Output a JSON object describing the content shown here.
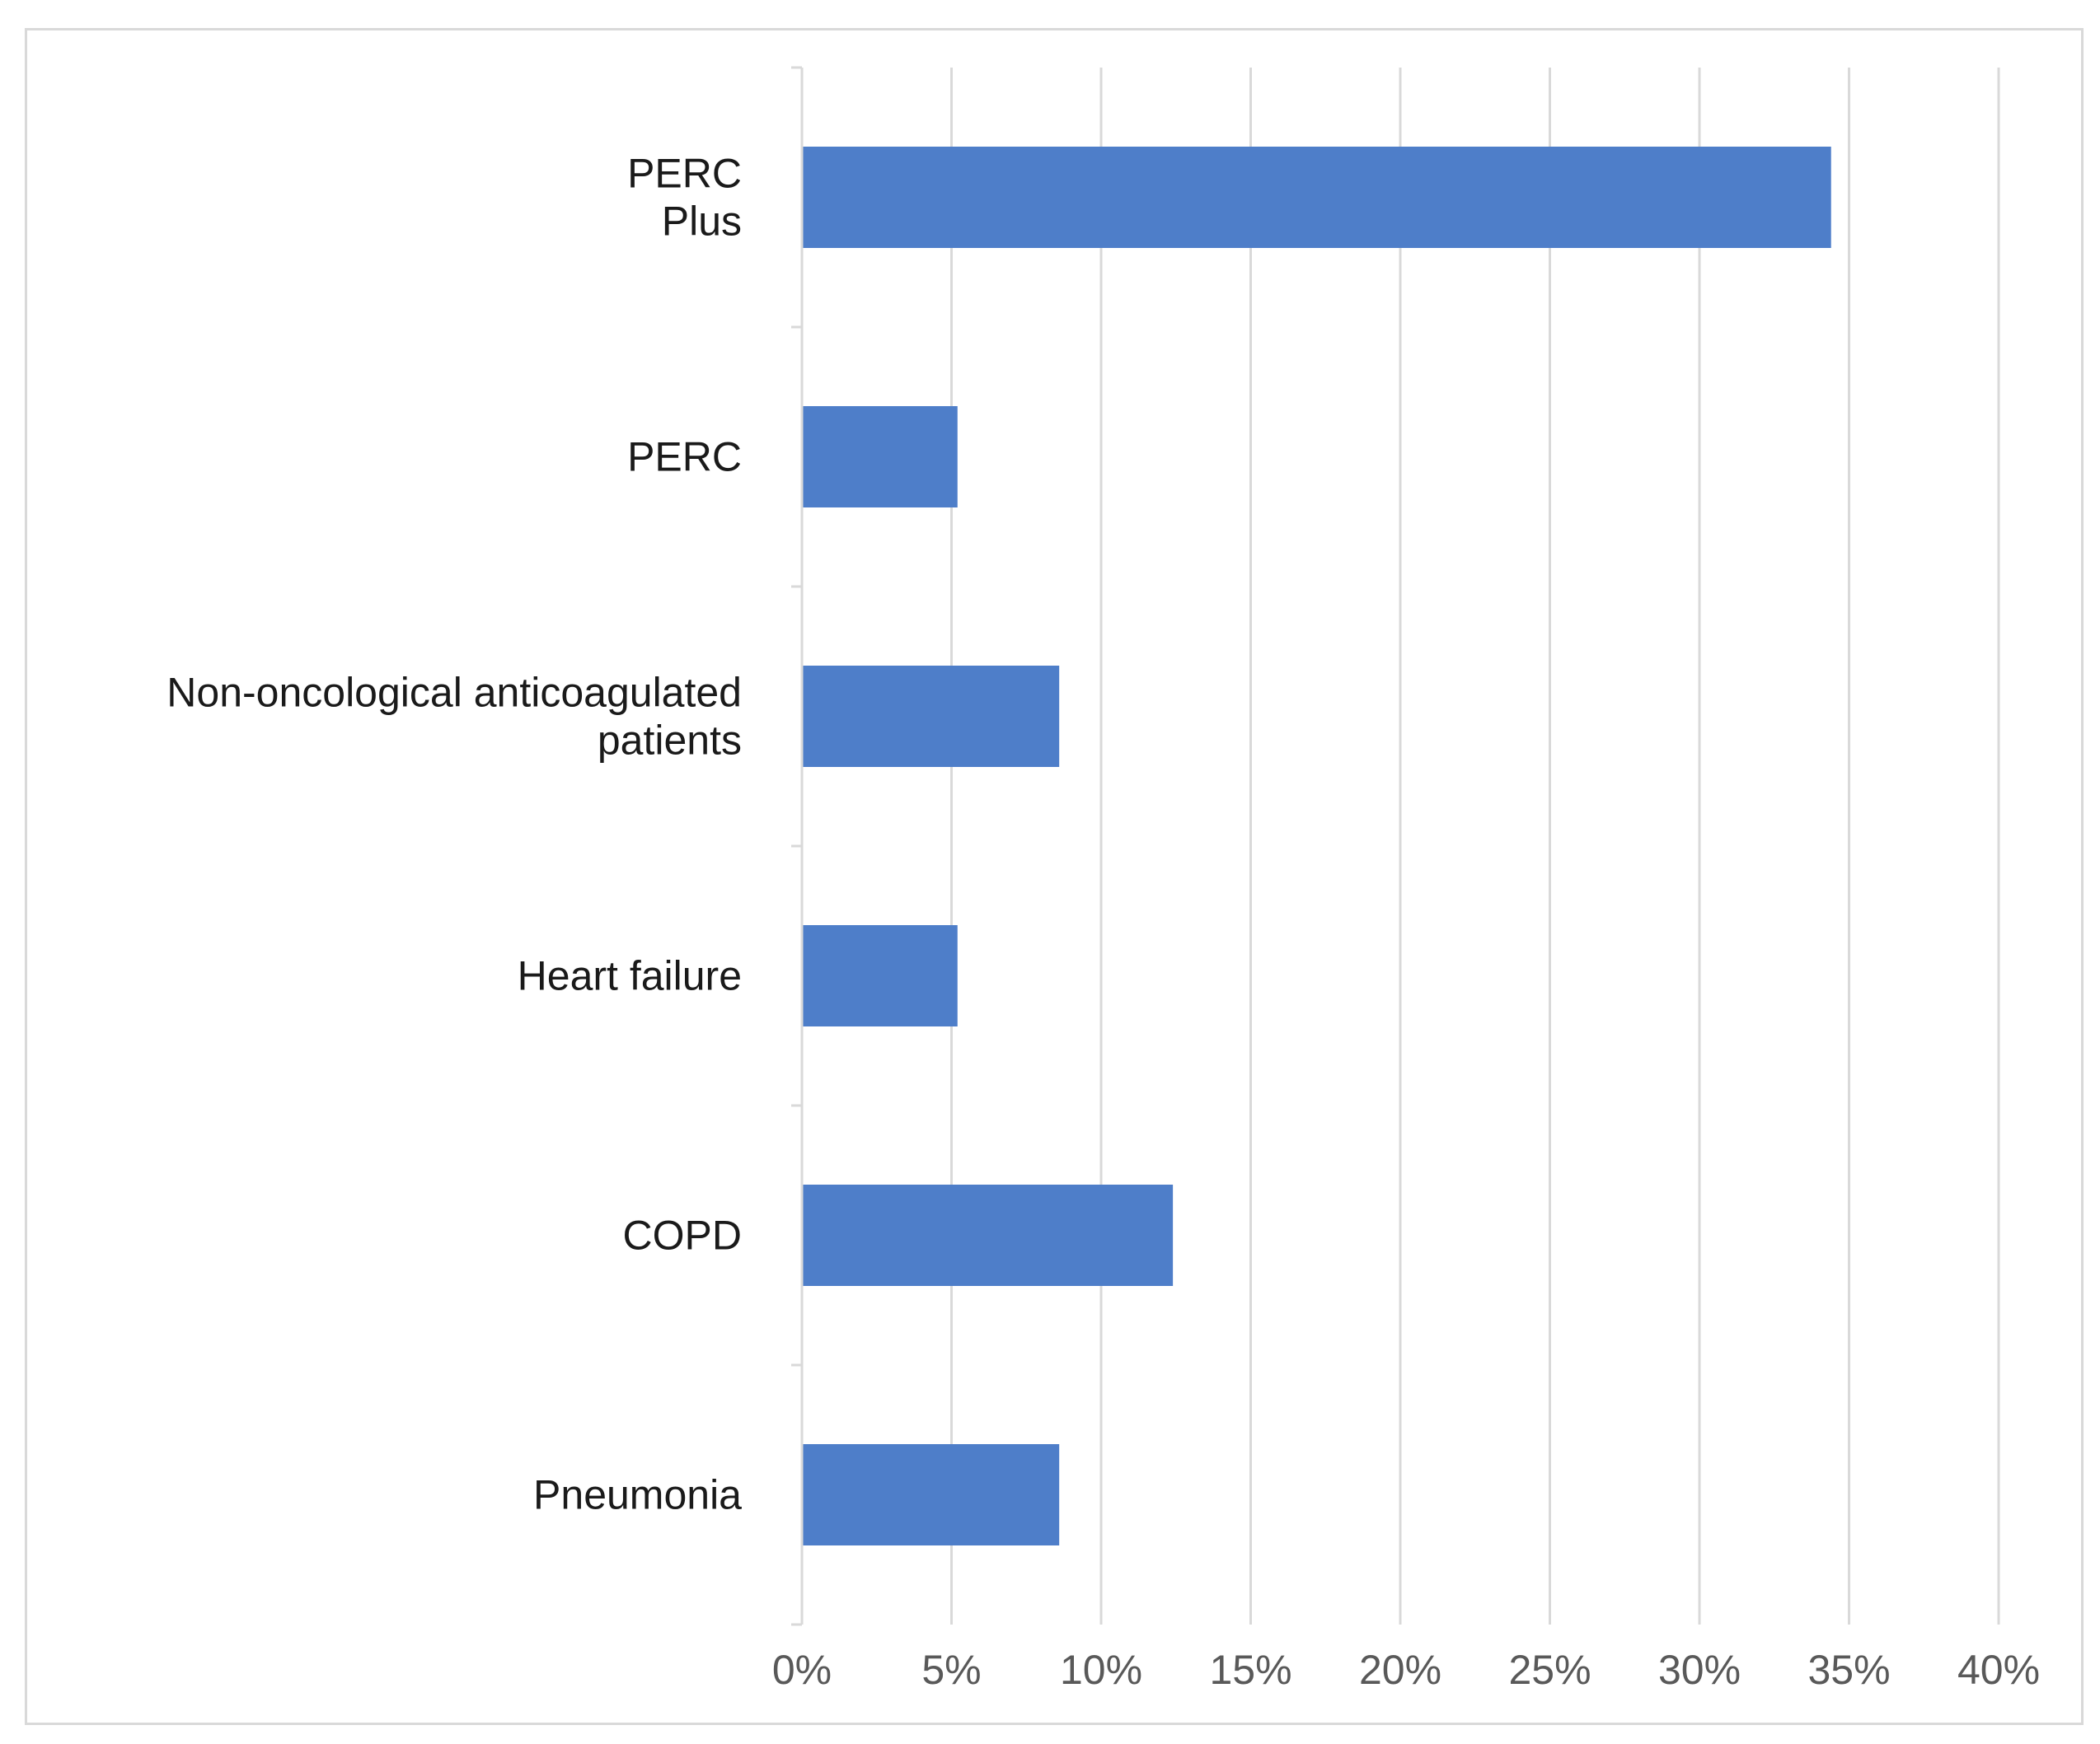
{
  "chart_data": {
    "type": "bar",
    "orientation": "horizontal",
    "title": "",
    "xlabel": "",
    "ylabel": "",
    "categories": [
      [
        "PERC",
        "Plus"
      ],
      [
        "PERC"
      ],
      [
        "Non-oncological anticoagulated",
        "patients"
      ],
      [
        "Heart failure"
      ],
      [
        "COPD"
      ],
      [
        "Pneumonia"
      ]
    ],
    "values": [
      34.4,
      5.2,
      8.6,
      5.2,
      12.4,
      8.6
    ],
    "xlim": [
      0,
      40
    ],
    "xticks": [
      0,
      5,
      10,
      15,
      20,
      25,
      30,
      35,
      40
    ],
    "xtick_labels": [
      "0%",
      "5%",
      "10%",
      "15%",
      "20%",
      "25%",
      "30%",
      "35%",
      "40%"
    ],
    "grid": "vertical",
    "legend": "none",
    "colors": {
      "bar": "#4e7ec9",
      "grid": "#d9d9d9",
      "axis": "#d9d9d9",
      "frame": "#d9d9d9"
    }
  }
}
